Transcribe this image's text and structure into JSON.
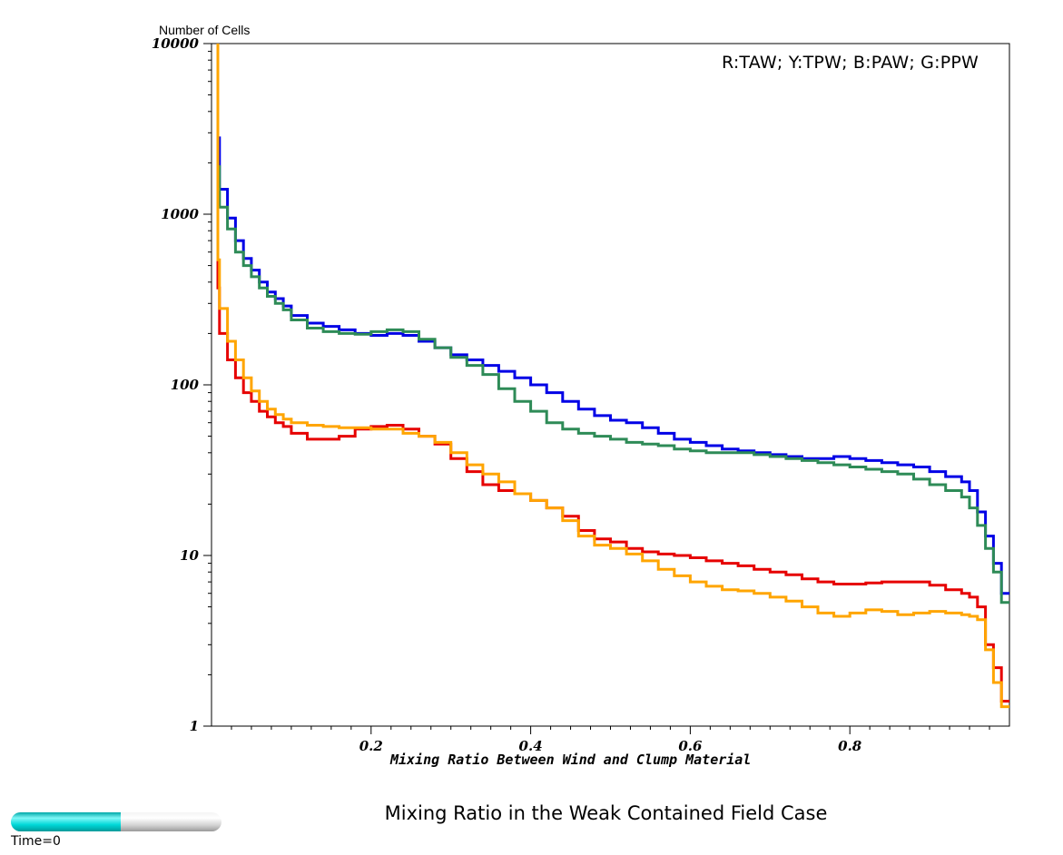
{
  "chart_data": {
    "type": "line",
    "title": "Mixing Ratio in the Weak Contained Field Case",
    "xlabel": "Mixing Ratio Between Wind and Clump Material",
    "ylabel": "Number of Cells",
    "legend_text": "R:TAW; Y:TPW; B:PAW; G:PPW",
    "xlim": [
      0,
      1
    ],
    "ylim": [
      1,
      10000
    ],
    "yscale": "log",
    "grid": false,
    "x_ticks": [
      {
        "value": 0.2,
        "label": "0.2"
      },
      {
        "value": 0.4,
        "label": "0.4"
      },
      {
        "value": 0.6,
        "label": "0.6"
      },
      {
        "value": 0.8,
        "label": "0.8"
      }
    ],
    "y_ticks": [
      {
        "value": 1,
        "label": "1"
      },
      {
        "value": 10,
        "label": "10"
      },
      {
        "value": 100,
        "label": "100"
      },
      {
        "value": 1000,
        "label": "1000"
      },
      {
        "value": 10000,
        "label": "10000"
      }
    ],
    "x": [
      0.01,
      0.02,
      0.03,
      0.04,
      0.05,
      0.06,
      0.07,
      0.08,
      0.09,
      0.1,
      0.12,
      0.14,
      0.16,
      0.18,
      0.2,
      0.22,
      0.24,
      0.26,
      0.28,
      0.3,
      0.32,
      0.34,
      0.36,
      0.38,
      0.4,
      0.42,
      0.44,
      0.46,
      0.48,
      0.5,
      0.52,
      0.54,
      0.56,
      0.58,
      0.6,
      0.62,
      0.64,
      0.66,
      0.68,
      0.7,
      0.72,
      0.74,
      0.76,
      0.78,
      0.8,
      0.82,
      0.84,
      0.86,
      0.88,
      0.9,
      0.92,
      0.94,
      0.95,
      0.96,
      0.97,
      0.98,
      0.99,
      1.0
    ],
    "series": [
      {
        "color": "#0000e6",
        "values": [
          2800,
          1400,
          950,
          700,
          550,
          470,
          400,
          350,
          320,
          290,
          255,
          230,
          220,
          210,
          200,
          195,
          200,
          195,
          180,
          165,
          150,
          140,
          130,
          120,
          110,
          100,
          90,
          80,
          72,
          66,
          62,
          60,
          56,
          52,
          48,
          46,
          44,
          42,
          41,
          40,
          39,
          38,
          37,
          37,
          38,
          37,
          36,
          35,
          34,
          33,
          31,
          29,
          27,
          24,
          18,
          13,
          9,
          6
        ]
      },
      {
        "color": "#2e8b57",
        "values": [
          1900,
          1100,
          820,
          600,
          500,
          430,
          370,
          330,
          300,
          275,
          240,
          215,
          205,
          200,
          198,
          205,
          210,
          205,
          185,
          165,
          145,
          130,
          115,
          95,
          80,
          70,
          60,
          55,
          52,
          50,
          48,
          46,
          45,
          44,
          42,
          41,
          40,
          40,
          40,
          39,
          38,
          37,
          36,
          35,
          34,
          33,
          32,
          31,
          30,
          28,
          26,
          24,
          22,
          19,
          15,
          11,
          8,
          5.3
        ]
      },
      {
        "color": "#e60000",
        "values": [
          370,
          200,
          140,
          110,
          90,
          80,
          70,
          65,
          60,
          57,
          52,
          48,
          48,
          50,
          55,
          57,
          58,
          55,
          50,
          45,
          37,
          31,
          26,
          24,
          23,
          21,
          19,
          17,
          14,
          12.5,
          12,
          11,
          10.5,
          10.2,
          10,
          9.7,
          9.3,
          9,
          8.7,
          8.3,
          8,
          7.7,
          7.3,
          7,
          6.8,
          6.8,
          6.9,
          7,
          7,
          7,
          6.7,
          6.3,
          6,
          5.7,
          5,
          3,
          2.2,
          1.4
        ]
      },
      {
        "color": "#ffa500",
        "values": [
          540,
          280,
          180,
          140,
          110,
          92,
          80,
          72,
          67,
          63,
          60,
          58,
          57,
          56,
          56,
          55,
          55,
          52,
          50,
          46,
          40,
          34,
          30,
          27,
          23,
          21,
          19,
          16,
          13,
          11.5,
          11,
          10.2,
          9.3,
          8.3,
          7.6,
          7,
          6.6,
          6.3,
          6.2,
          6,
          5.7,
          5.4,
          5,
          4.6,
          4.4,
          4.6,
          4.8,
          4.7,
          4.5,
          4.6,
          4.7,
          4.6,
          4.5,
          4.4,
          4.2,
          2.8,
          1.8,
          1.3
        ]
      }
    ]
  },
  "time_control": {
    "label": "Time=0",
    "progress": 0.52
  }
}
